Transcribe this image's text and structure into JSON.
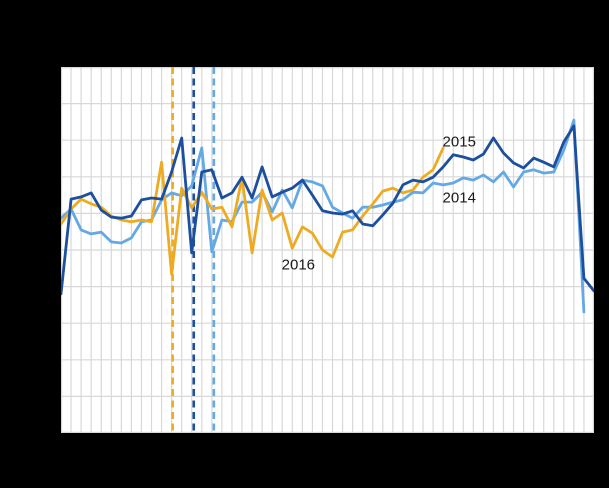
{
  "page": {
    "background_color": "#000000",
    "plot_background_color": "#ffffff",
    "grid_color": "#d8d8d8",
    "label_text_color": "#1a1a1a"
  },
  "chart_data": {
    "type": "line",
    "title": "",
    "xlabel": "",
    "ylabel": "",
    "x_unit": "week",
    "x_range": [
      1,
      54
    ],
    "ylim": [
      0,
      100
    ],
    "y_gridline_step": 10,
    "x_gridline_step": 1,
    "grid": "on",
    "legend_position": "inline-labels",
    "axis_tick_labels_visible": false,
    "series": [
      {
        "name": "2014",
        "color": "#64a8e4",
        "style": "solid",
        "values": [
          58.7,
          61.2,
          55.5,
          54.4,
          54.9,
          52.2,
          51.9,
          53.3,
          57.7,
          58.2,
          63.7,
          65.6,
          64.8,
          67.5,
          77.9,
          49.5,
          58.2,
          57.7,
          63.1,
          63.1,
          65.8,
          60.4,
          66.4,
          61.5,
          69.1,
          68.6,
          67.5,
          61.7,
          60.1,
          58.7,
          61.7,
          61.7,
          62.3,
          63.1,
          63.7,
          65.8,
          65.6,
          68.3,
          67.8,
          68.3,
          69.7,
          69.1,
          70.5,
          68.6,
          71.3,
          67.2,
          71.3,
          71.9,
          71.0,
          71.3,
          77.3,
          85.5,
          33.1
        ]
      },
      {
        "name": "2016",
        "color": "#eeab22",
        "style": "solid",
        "values": [
          57.1,
          61.2,
          63.9,
          62.6,
          61.7,
          59.3,
          58.2,
          57.7,
          58.2,
          57.7,
          74.0,
          43.4,
          66.9,
          61.5,
          65.8,
          61.2,
          61.7,
          56.3,
          69.7,
          49.2,
          66.4,
          58.2,
          60.1,
          50.5,
          56.3,
          54.6,
          50.0,
          48.1,
          54.9,
          55.5,
          59.3,
          62.6,
          66.1,
          66.9,
          65.6,
          66.4,
          69.9,
          71.9,
          77.9
        ]
      },
      {
        "name": "2015",
        "color": "#1c4f9e",
        "style": "solid",
        "values": [
          38.0,
          63.9,
          64.5,
          65.6,
          60.9,
          59.0,
          58.7,
          59.3,
          63.7,
          64.2,
          63.9,
          71.3,
          80.6,
          49.2,
          71.3,
          71.9,
          64.2,
          65.6,
          69.9,
          64.2,
          72.7,
          64.5,
          65.8,
          66.9,
          69.1,
          65.0,
          60.7,
          60.1,
          59.8,
          60.7,
          57.1,
          56.6,
          59.6,
          62.8,
          67.8,
          69.1,
          68.6,
          69.9,
          72.7,
          76.0,
          75.4,
          74.6,
          76.2,
          80.6,
          76.5,
          73.8,
          72.4,
          75.1,
          74.0,
          72.7,
          79.5,
          83.9,
          42.3,
          38.8
        ]
      }
    ],
    "dashed_vlines": [
      {
        "series": "2016",
        "week": 12.1,
        "color": "#eeab22"
      },
      {
        "series": "2015",
        "week": 14.2,
        "color": "#1c4f9e"
      },
      {
        "series": "2014",
        "week": 16.2,
        "color": "#64a8e4"
      }
    ],
    "annotations": [
      {
        "text": "2015",
        "week": 40.6,
        "value": 79.5
      },
      {
        "text": "2014",
        "week": 40.6,
        "value": 64.2
      },
      {
        "text": "2016",
        "week": 24.6,
        "value": 45.9
      }
    ]
  }
}
